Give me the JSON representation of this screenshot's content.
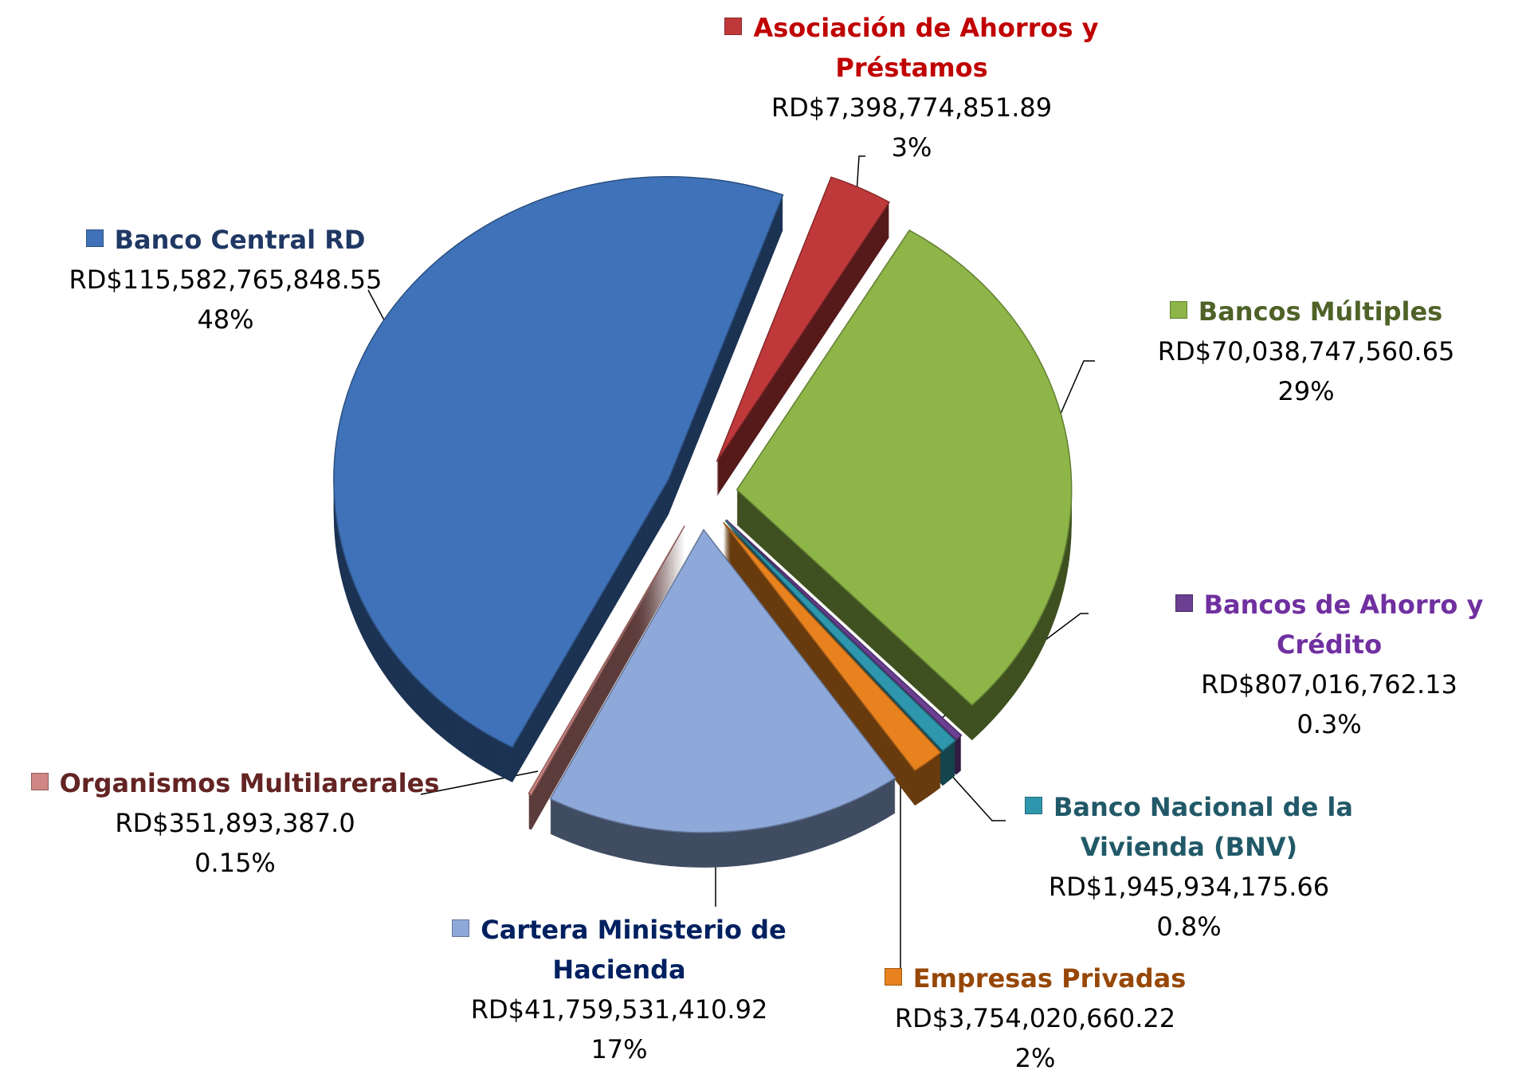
{
  "chart_data": {
    "type": "pie",
    "categories": [
      "Asociación de Ahorros y Préstamos",
      "Bancos Múltiples",
      "Bancos de Ahorro y Crédito",
      "Banco Nacional de la Vivienda (BNV)",
      "Empresas Privadas",
      "Cartera Ministerio de Hacienda",
      "Organismos Multilarerales",
      "Banco Central RD"
    ],
    "values": [
      7398774851.89,
      70038747560.65,
      807016762.13,
      1945934175.66,
      3754020660.22,
      41759531410.92,
      351893387.0,
      115582765848.55
    ],
    "value_labels": [
      "RD$7,398,774,851.89",
      "RD$70,038,747,560.65",
      "RD$807,016,762.13",
      "RD$1,945,934,175.66",
      "RD$3,754,020,660.22",
      "RD$41,759,531,410.92",
      "RD$351,893,387.0",
      "RD$115,582,765,848.55"
    ],
    "percent_labels": [
      "3%",
      "29%",
      "0.3%",
      "0.8%",
      "2%",
      "17%",
      "0.15%",
      "48%"
    ],
    "colors": [
      "#c0393a",
      "#8db548",
      "#6b3f92",
      "#2f97ad",
      "#e8821f",
      "#8ea9d9",
      "#cf8684",
      "#3f72b8"
    ],
    "label_colors": [
      "#c00000",
      "#4f6228",
      "#7030a0",
      "#215968",
      "#974706",
      "#002060",
      "#632423",
      "#1f3864"
    ]
  }
}
